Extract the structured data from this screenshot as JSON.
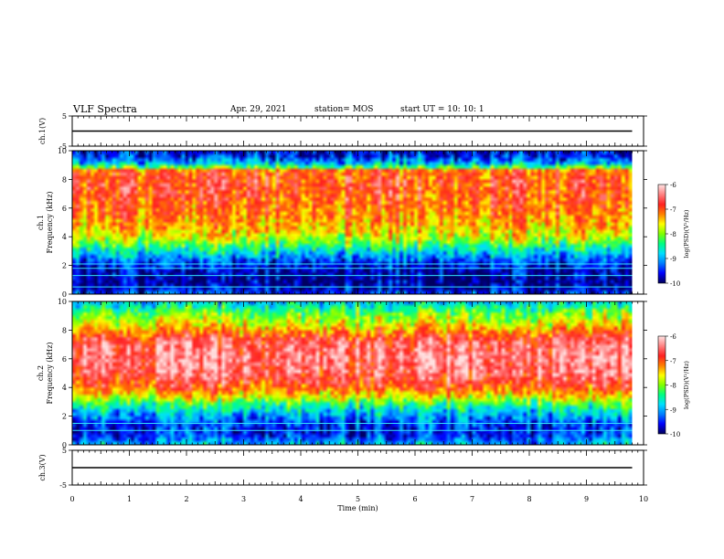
{
  "header": {
    "title": "VLF Spectra",
    "date": "Apr. 29, 2021",
    "station": "station= MOS",
    "start": "start  UT =   10: 10: 1"
  },
  "colorbar": {
    "label": "log(PSD)(V²/Hz)",
    "ticks": [
      "-6",
      "-7",
      "-8",
      "-9",
      "-10"
    ],
    "colors": [
      "#000060",
      "#0000ff",
      "#0080ff",
      "#00e0ff",
      "#00ff80",
      "#80ff00",
      "#ffff00",
      "#ff8000",
      "#ff2020",
      "#ff8080",
      "#ffe0e0"
    ]
  },
  "chart_data": [
    {
      "type": "line",
      "panel": "ch1-voltage",
      "ylabel": "ch.1(V)",
      "ylim": [
        -5,
        5
      ],
      "yticks": [
        "5",
        "-5"
      ],
      "xlim": [
        0,
        10
      ],
      "series": [
        {
          "x": [
            0,
            9.8
          ],
          "y": [
            0,
            0
          ]
        }
      ]
    },
    {
      "type": "heatmap",
      "panel": "ch1-spectrogram",
      "ylabel": "ch.1\nFrequency (kHz)",
      "ylim": [
        0,
        10
      ],
      "yticks": [
        "0",
        "2",
        "4",
        "6",
        "8",
        "10"
      ],
      "xlim": [
        0,
        10
      ],
      "data_x_end": 9.8,
      "profile": {
        "freq_khz": [
          0,
          0.5,
          1.0,
          1.5,
          2.0,
          2.5,
          3.0,
          3.5,
          4.0,
          5.0,
          6.0,
          7.0,
          8.0,
          8.6,
          9.0,
          9.5,
          10.0
        ],
        "log_psd": [
          -9.2,
          -9.8,
          -9.8,
          -9.7,
          -9.5,
          -9.1,
          -8.6,
          -8.1,
          -7.6,
          -7.2,
          -7.0,
          -6.8,
          -6.8,
          -6.9,
          -8.7,
          -9.3,
          -9.6
        ]
      },
      "lines_khz": [
        0.5,
        1.3,
        1.8,
        2.1
      ]
    },
    {
      "type": "heatmap",
      "panel": "ch2-spectrogram",
      "ylabel": "ch.2\nFrequency (kHz)",
      "ylim": [
        0,
        10
      ],
      "yticks": [
        "0",
        "2",
        "4",
        "6",
        "8",
        "10"
      ],
      "xlim": [
        0,
        10
      ],
      "data_x_end": 9.8,
      "profile": {
        "freq_khz": [
          0,
          0.5,
          1.0,
          1.5,
          2.0,
          2.5,
          3.0,
          3.5,
          4.0,
          5.0,
          6.0,
          7.0,
          7.5,
          8.0,
          8.5,
          9.0,
          9.5,
          10.0
        ],
        "log_psd": [
          -8.8,
          -9.3,
          -9.5,
          -9.3,
          -9.0,
          -8.6,
          -8.0,
          -7.4,
          -6.9,
          -6.4,
          -6.3,
          -6.4,
          -6.7,
          -7.2,
          -7.6,
          -7.9,
          -8.3,
          -8.8
        ]
      },
      "lines_khz": [
        1.0,
        1.5
      ]
    },
    {
      "type": "line",
      "panel": "ch3-voltage",
      "ylabel": "ch.3(V)",
      "ylim": [
        -5,
        5
      ],
      "yticks": [
        "5",
        "-5"
      ],
      "xlim": [
        0,
        10
      ],
      "xlabel": "Time  (min)",
      "xticks": [
        "0",
        "1",
        "2",
        "3",
        "4",
        "5",
        "6",
        "7",
        "8",
        "9",
        "10"
      ],
      "series": [
        {
          "x": [
            0,
            9.8
          ],
          "y": [
            0,
            0
          ]
        }
      ]
    }
  ]
}
